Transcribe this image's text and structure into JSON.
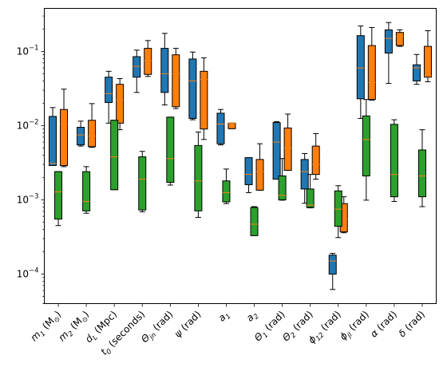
{
  "chart_data": {
    "type": "box",
    "title": "",
    "xlabel": "",
    "ylabel": "",
    "yscale": "log",
    "ylim": [
      4e-05,
      0.38
    ],
    "yticks": [
      {
        "value": 0.0001,
        "base": "10",
        "exp": "−4"
      },
      {
        "value": 0.001,
        "base": "10",
        "exp": "−3"
      },
      {
        "value": 0.01,
        "base": "10",
        "exp": "−2"
      },
      {
        "value": 0.1,
        "base": "10",
        "exp": "−1"
      }
    ],
    "categories": [
      {
        "main": "m",
        "sub": "1",
        "unit": " (M",
        "usub": "⊙",
        "close": ")"
      },
      {
        "main": "m",
        "sub": "2",
        "unit": " (M",
        "usub": "⊙",
        "close": ")"
      },
      {
        "main": "d",
        "sub": "L",
        "unit": " (Mpc)",
        "usub": "",
        "close": ""
      },
      {
        "main": "t",
        "sub": "0",
        "unit": " (seconds)",
        "usub": "",
        "close": ""
      },
      {
        "main": "Θ",
        "sub": "jn",
        "unit": " (rad)",
        "usub": "",
        "close": ""
      },
      {
        "main": "ψ",
        "sub": "",
        "unit": " (rad)",
        "usub": "",
        "close": ""
      },
      {
        "main": "a",
        "sub": "1",
        "unit": "",
        "usub": "",
        "close": ""
      },
      {
        "main": "a",
        "sub": "2",
        "unit": "",
        "usub": "",
        "close": ""
      },
      {
        "main": "Θ",
        "sub": "1",
        "unit": " (rad)",
        "usub": "",
        "close": ""
      },
      {
        "main": "Θ",
        "sub": "2",
        "unit": " (rad)",
        "usub": "",
        "close": ""
      },
      {
        "main": "ϕ",
        "sub": "12",
        "unit": " (rad)",
        "usub": "",
        "close": ""
      },
      {
        "main": "ϕ",
        "sub": "jl",
        "unit": " (rad)",
        "usub": "",
        "close": ""
      },
      {
        "main": "α",
        "sub": "",
        "unit": " (rad)",
        "usub": "",
        "close": ""
      },
      {
        "main": "δ",
        "sub": "",
        "unit": " (rad)",
        "usub": "",
        "close": ""
      }
    ],
    "series": [
      {
        "color": "#1f77b4",
        "boxes": [
          {
            "wl": 0.0029,
            "q1": 0.0029,
            "med": 0.0031,
            "q3": 0.0133,
            "wh": 0.0175
          },
          {
            "wl": 0.0053,
            "q1": 0.0055,
            "med": 0.0075,
            "q3": 0.0095,
            "wh": 0.0115
          },
          {
            "wl": 0.0108,
            "q1": 0.0205,
            "med": 0.027,
            "q3": 0.045,
            "wh": 0.054
          },
          {
            "wl": 0.028,
            "q1": 0.045,
            "med": 0.063,
            "q3": 0.085,
            "wh": 0.104
          },
          {
            "wl": 0.019,
            "q1": 0.028,
            "med": 0.05,
            "q3": 0.11,
            "wh": 0.175
          },
          {
            "wl": 0.012,
            "q1": 0.0125,
            "med": 0.04,
            "q3": 0.079,
            "wh": 0.098
          },
          {
            "wl": 0.0055,
            "q1": 0.0057,
            "med": 0.0105,
            "q3": 0.0147,
            "wh": 0.0165
          },
          {
            "wl": 0.00125,
            "q1": 0.0016,
            "med": 0.0022,
            "q3": 0.0037,
            "wh": 0.0037
          },
          {
            "wl": 0.0019,
            "q1": 0.0019,
            "med": 0.006,
            "q3": 0.011,
            "wh": 0.0113
          },
          {
            "wl": 0.0009,
            "q1": 0.0014,
            "med": 0.0024,
            "q3": 0.0035,
            "wh": 0.0042
          },
          {
            "wl": 6.2e-05,
            "q1": 0.0001,
            "med": 0.00015,
            "q3": 0.00018,
            "wh": 0.00019
          },
          {
            "wl": 0.0125,
            "q1": 0.023,
            "med": 0.06,
            "q3": 0.163,
            "wh": 0.22
          },
          {
            "wl": 0.037,
            "q1": 0.095,
            "med": 0.15,
            "q3": 0.195,
            "wh": 0.245
          },
          {
            "wl": 0.036,
            "q1": 0.04,
            "med": 0.06,
            "q3": 0.066,
            "wh": 0.091
          }
        ]
      },
      {
        "color": "#ff7f0e",
        "boxes": [
          {
            "wl": 0.0028,
            "q1": 0.0029,
            "med": 0.0105,
            "q3": 0.0165,
            "wh": 0.031
          },
          {
            "wl": 0.0051,
            "q1": 0.0052,
            "med": 0.0072,
            "q3": 0.0118,
            "wh": 0.0198
          },
          {
            "wl": 0.0088,
            "q1": 0.0108,
            "med": 0.022,
            "q3": 0.036,
            "wh": 0.043
          },
          {
            "wl": 0.046,
            "q1": 0.049,
            "med": 0.075,
            "q3": 0.11,
            "wh": 0.14
          },
          {
            "wl": 0.017,
            "q1": 0.018,
            "med": 0.05,
            "q3": 0.09,
            "wh": 0.11
          },
          {
            "wl": 0.0065,
            "q1": 0.009,
            "med": 0.042,
            "q3": 0.054,
            "wh": 0.082
          },
          {
            "wl": 0.0091,
            "q1": 0.0091,
            "med": 0.0108,
            "q3": 0.0108,
            "wh": 0.0108
          },
          {
            "wl": 0.00135,
            "q1": 0.00135,
            "med": 0.0024,
            "q3": 0.0035,
            "wh": 0.0057
          },
          {
            "wl": 0.0025,
            "q1": 0.0025,
            "med": 0.005,
            "q3": 0.0093,
            "wh": 0.0143
          },
          {
            "wl": 0.0019,
            "q1": 0.0022,
            "med": 0.003,
            "q3": 0.0053,
            "wh": 0.0078
          },
          {
            "wl": 0.00036,
            "q1": 0.00037,
            "med": 0.00055,
            "q3": 0.00089,
            "wh": 0.0011
          },
          {
            "wl": 0.022,
            "q1": 0.0225,
            "med": 0.038,
            "q3": 0.12,
            "wh": 0.21
          },
          {
            "wl": 0.117,
            "q1": 0.12,
            "med": 0.16,
            "q3": 0.18,
            "wh": 0.195
          },
          {
            "wl": 0.039,
            "q1": 0.045,
            "med": 0.047,
            "q3": 0.117,
            "wh": 0.19
          }
        ]
      },
      {
        "color": "#2ca02c",
        "boxes": [
          {
            "wl": 0.00045,
            "q1": 0.00055,
            "med": 0.00128,
            "q3": 0.0024,
            "wh": 0.0024
          },
          {
            "wl": 0.00066,
            "q1": 0.00071,
            "med": 0.00095,
            "q3": 0.0024,
            "wh": 0.0028
          },
          {
            "wl": 0.00137,
            "q1": 0.00137,
            "med": 0.0038,
            "q3": 0.0118,
            "wh": 0.0118
          },
          {
            "wl": 0.00069,
            "q1": 0.00073,
            "med": 0.0019,
            "q3": 0.0038,
            "wh": 0.0045
          },
          {
            "wl": 0.00158,
            "q1": 0.00172,
            "med": 0.0036,
            "q3": 0.013,
            "wh": 0.013
          },
          {
            "wl": 0.00058,
            "q1": 0.00071,
            "med": 0.0018,
            "q3": 0.0054,
            "wh": 0.0082
          },
          {
            "wl": 0.00089,
            "q1": 0.00094,
            "med": 0.00125,
            "q3": 0.0018,
            "wh": 0.0026
          },
          {
            "wl": 0.00033,
            "q1": 0.00033,
            "med": 0.00047,
            "q3": 0.00079,
            "wh": 0.00081
          },
          {
            "wl": 0.00099,
            "q1": 0.001,
            "med": 0.00115,
            "q3": 0.0021,
            "wh": 0.0036
          },
          {
            "wl": 0.00078,
            "q1": 0.00079,
            "med": 0.00085,
            "q3": 0.0014,
            "wh": 0.0022
          },
          {
            "wl": 0.00031,
            "q1": 0.00044,
            "med": 0.00075,
            "q3": 0.00132,
            "wh": 0.00155
          },
          {
            "wl": 0.00099,
            "q1": 0.0021,
            "med": 0.0065,
            "q3": 0.0135,
            "wh": 0.0225
          },
          {
            "wl": 0.00095,
            "q1": 0.0011,
            "med": 0.0022,
            "q3": 0.0104,
            "wh": 0.012
          },
          {
            "wl": 0.00081,
            "q1": 0.0011,
            "med": 0.0021,
            "q3": 0.0047,
            "wh": 0.0088
          }
        ]
      }
    ],
    "grid": false,
    "legend": "none",
    "median_color": "#ff7f0e"
  }
}
